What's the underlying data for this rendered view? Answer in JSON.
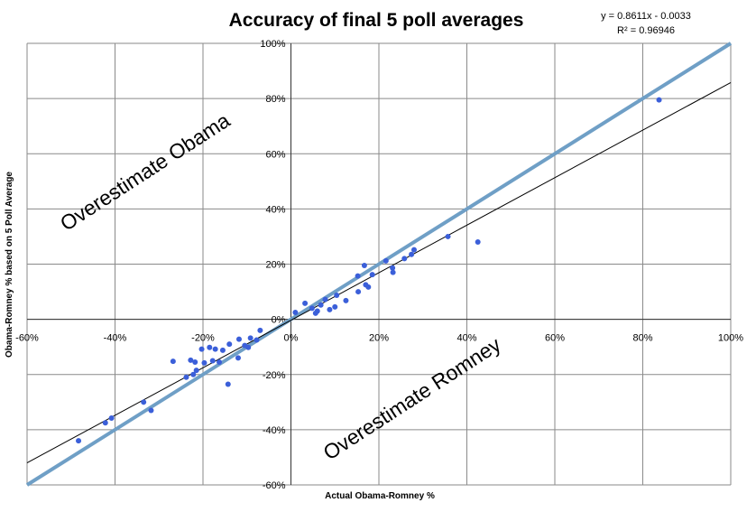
{
  "chart_data": {
    "type": "scatter",
    "title": "Accuracy of final 5 poll averages",
    "xlabel": "Actual Obama-Romney %",
    "ylabel": "Obama-Romney % based on 5 Poll Average",
    "xlim": [
      -0.6,
      1.0
    ],
    "ylim": [
      -0.6,
      1.0
    ],
    "x_ticks": [
      -0.6,
      -0.4,
      -0.2,
      0,
      0.2,
      0.4,
      0.6,
      0.8,
      1.0
    ],
    "x_tick_labels": [
      "-60%",
      "-40%",
      "-20%",
      "0%",
      "20%",
      "40%",
      "60%",
      "80%",
      "100%"
    ],
    "y_ticks": [
      1.0,
      0.8,
      0.6,
      0.4,
      0.2,
      0,
      -0.2,
      -0.4,
      -0.6
    ],
    "y_tick_labels": [
      "100%",
      "80%",
      "60%",
      "40%",
      "20%",
      "0%",
      "-20%",
      "-40%",
      "-60%"
    ],
    "grid": true,
    "point_color": "#3b5fd9",
    "trendline_color": "#000000",
    "identity_line_color": "#6f9fc6",
    "equation_label": "y = 0.8611x - 0.0033",
    "r2_label": "R² = 0.96946",
    "trendline": {
      "slope": 0.8611,
      "intercept": -0.0033
    },
    "identity_line": {
      "slope": 1,
      "intercept": 0
    },
    "annotations": [
      "Overestimate Obama",
      "Overestimate Romney"
    ],
    "points": [
      {
        "x": 0.837,
        "y": 0.795
      },
      {
        "x": 0.425,
        "y": 0.28
      },
      {
        "x": 0.357,
        "y": 0.3
      },
      {
        "x": 0.28,
        "y": 0.252
      },
      {
        "x": 0.274,
        "y": 0.235
      },
      {
        "x": 0.258,
        "y": 0.22
      },
      {
        "x": 0.216,
        "y": 0.212
      },
      {
        "x": 0.231,
        "y": 0.186
      },
      {
        "x": 0.232,
        "y": 0.17
      },
      {
        "x": 0.185,
        "y": 0.162
      },
      {
        "x": 0.167,
        "y": 0.195
      },
      {
        "x": 0.152,
        "y": 0.157
      },
      {
        "x": 0.17,
        "y": 0.125
      },
      {
        "x": 0.176,
        "y": 0.117
      },
      {
        "x": 0.153,
        "y": 0.1
      },
      {
        "x": 0.125,
        "y": 0.068
      },
      {
        "x": 0.104,
        "y": 0.087
      },
      {
        "x": 0.1,
        "y": 0.045
      },
      {
        "x": 0.088,
        "y": 0.035
      },
      {
        "x": 0.078,
        "y": 0.072
      },
      {
        "x": 0.068,
        "y": 0.052
      },
      {
        "x": 0.06,
        "y": 0.03
      },
      {
        "x": 0.056,
        "y": 0.022
      },
      {
        "x": 0.048,
        "y": 0.04
      },
      {
        "x": 0.032,
        "y": 0.058
      },
      {
        "x": 0.01,
        "y": 0.025
      },
      {
        "x": -0.07,
        "y": -0.04
      },
      {
        "x": -0.078,
        "y": -0.075
      },
      {
        "x": -0.092,
        "y": -0.068
      },
      {
        "x": -0.097,
        "y": -0.102
      },
      {
        "x": -0.105,
        "y": -0.095
      },
      {
        "x": -0.118,
        "y": -0.072
      },
      {
        "x": -0.12,
        "y": -0.14
      },
      {
        "x": -0.14,
        "y": -0.09
      },
      {
        "x": -0.143,
        "y": -0.235
      },
      {
        "x": -0.155,
        "y": -0.112
      },
      {
        "x": -0.163,
        "y": -0.155
      },
      {
        "x": -0.172,
        "y": -0.108
      },
      {
        "x": -0.178,
        "y": -0.15
      },
      {
        "x": -0.185,
        "y": -0.102
      },
      {
        "x": -0.197,
        "y": -0.158
      },
      {
        "x": -0.203,
        "y": -0.108
      },
      {
        "x": -0.215,
        "y": -0.185
      },
      {
        "x": -0.218,
        "y": -0.155
      },
      {
        "x": -0.222,
        "y": -0.2
      },
      {
        "x": -0.228,
        "y": -0.148
      },
      {
        "x": -0.238,
        "y": -0.21
      },
      {
        "x": -0.268,
        "y": -0.152
      },
      {
        "x": -0.318,
        "y": -0.33
      },
      {
        "x": -0.335,
        "y": -0.3
      },
      {
        "x": -0.408,
        "y": -0.358
      },
      {
        "x": -0.422,
        "y": -0.375
      },
      {
        "x": -0.483,
        "y": -0.44
      }
    ]
  }
}
